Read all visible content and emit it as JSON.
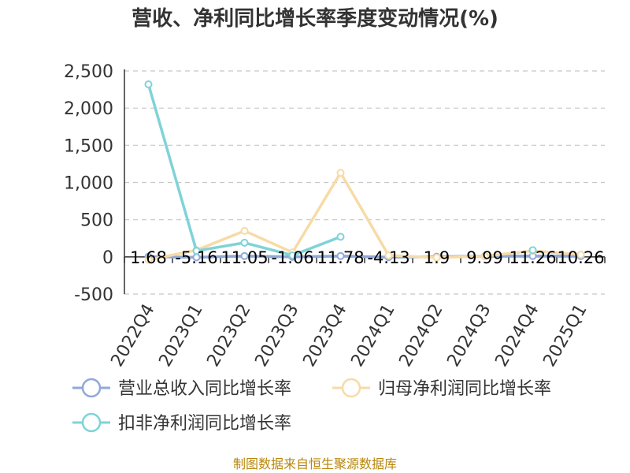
{
  "chart_data": {
    "type": "line",
    "title": "营收、净利同比增长率季度变动情况(%)",
    "categories": [
      "2022Q4",
      "2023Q1",
      "2023Q2",
      "2023Q3",
      "2023Q4",
      "2024Q1",
      "2024Q2",
      "2024Q3",
      "2024Q4",
      "2025Q1"
    ],
    "ylim": [
      -500,
      2500
    ],
    "yticks": [
      -500,
      0,
      500,
      1000,
      1500,
      2000,
      2500
    ],
    "ytick_labels": [
      "-500",
      "0",
      "500",
      "1,000",
      "1,500",
      "2,000",
      "2,500"
    ],
    "grid": true,
    "legend_position": "bottom",
    "series": [
      {
        "name": "营业总收入同比增长率",
        "color": "#8fa9d9",
        "values": [
          1.68,
          -5.16,
          11.05,
          -1.06,
          11.78,
          -4.13,
          1.9,
          9.99,
          11.26,
          10.26
        ],
        "labels": [
          "1.68",
          "-5.16",
          "11.05",
          "-1.06",
          "11.78",
          "-4.13",
          "1.9",
          "9.99",
          "11.26",
          "10.26"
        ]
      },
      {
        "name": "归母净利润同比增长率",
        "color": "#f7dba6",
        "values": [
          -40,
          90,
          350,
          60,
          1130,
          20,
          -10,
          10,
          80,
          30
        ]
      },
      {
        "name": "扣非净利润同比增长率",
        "color": "#7fd3d8",
        "values": [
          2320,
          80,
          190,
          20,
          270,
          null,
          null,
          null,
          90,
          null
        ]
      }
    ],
    "source": "制图数据来自恒生聚源数据库"
  }
}
